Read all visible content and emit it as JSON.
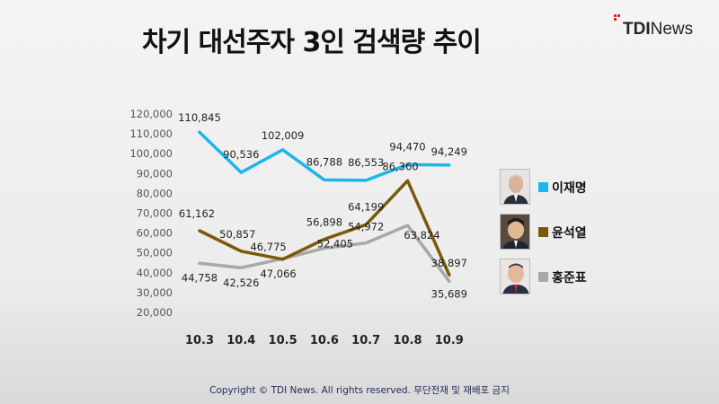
{
  "header": {
    "title": "차기 대선주자 3인 검색량 추이",
    "logo_text_bold": "TDI",
    "logo_text_light": "News"
  },
  "footer": {
    "copyright": "Copyright © TDI News. All rights reserved. 무단전재 및 재배포 금지"
  },
  "colors": {
    "lee": "#1fb5e8",
    "yoon": "#7a5a0a",
    "hong": "#a8a8a8",
    "logo_accent": "#e0202a"
  },
  "chart_data": {
    "type": "line",
    "title": "",
    "xlabel": "",
    "ylabel": "",
    "categories": [
      "10.3",
      "10.4",
      "10.5",
      "10.6",
      "10.7",
      "10.8",
      "10.9"
    ],
    "ylim": [
      20000,
      120000
    ],
    "yticks": [
      20000,
      30000,
      40000,
      50000,
      60000,
      70000,
      80000,
      90000,
      100000,
      110000,
      120000
    ],
    "ytick_labels": [
      "20,000",
      "30,000",
      "40,000",
      "50,000",
      "60,000",
      "70,000",
      "80,000",
      "90,000",
      "100,000",
      "110,000",
      "120,000"
    ],
    "grid": false,
    "legend_position": "right",
    "series": [
      {
        "name": "이재명",
        "color_key": "lee",
        "values": [
          110845,
          90536,
          102009,
          86788,
          86553,
          94470,
          94249
        ],
        "labels": [
          "110,845",
          "90,536",
          "102,009",
          "86,788",
          "86,553",
          "94,470",
          "94,249"
        ]
      },
      {
        "name": "윤석열",
        "color_key": "yoon",
        "values": [
          61162,
          50857,
          46775,
          56898,
          64199,
          86360,
          38897
        ],
        "labels": [
          "61,162",
          "50,857",
          "46,775",
          "56,898",
          "64,199",
          "86,360",
          "38,897"
        ]
      },
      {
        "name": "홍준표",
        "color_key": "hong",
        "values": [
          44758,
          42526,
          47066,
          52405,
          54972,
          63824,
          35689
        ],
        "labels": [
          "44,758",
          "42,526",
          "47,066",
          "52,405",
          "54,972",
          "63,824",
          "35,689"
        ]
      }
    ]
  }
}
